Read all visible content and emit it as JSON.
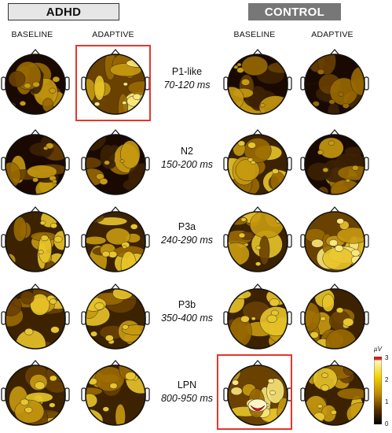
{
  "groups": {
    "adhd": "ADHD",
    "control": "CONTROL"
  },
  "columns": [
    "BASELINE",
    "ADAPTIVE",
    "BASELINE",
    "ADAPTIVE"
  ],
  "rows": [
    {
      "name": "P1-like",
      "time": "70-120 ms"
    },
    {
      "name": "N2",
      "time": "150-200 ms"
    },
    {
      "name": "P3a",
      "time": "240-290 ms"
    },
    {
      "name": "P3b",
      "time": "350-400 ms"
    },
    {
      "name": "LPN",
      "time": "800-950 ms"
    }
  ],
  "highlighted": [
    {
      "group": "ADHD",
      "condition": "ADAPTIVE",
      "component": "P1-like"
    },
    {
      "group": "CONTROL",
      "condition": "BASELINE",
      "component": "LPN"
    }
  ],
  "colorbar": {
    "unit": "µV",
    "ticks": [
      "3",
      "2",
      "1",
      "0"
    ],
    "colors": [
      "#d42020",
      "#fff2a8",
      "#f0d000",
      "#c89000",
      "#7a4a00",
      "#2a1200",
      "#000000"
    ]
  },
  "colors": {
    "highlight": "#e2382b",
    "control_header_bg": "#777777",
    "adhd_header_bg": "#e6e6e6"
  }
}
